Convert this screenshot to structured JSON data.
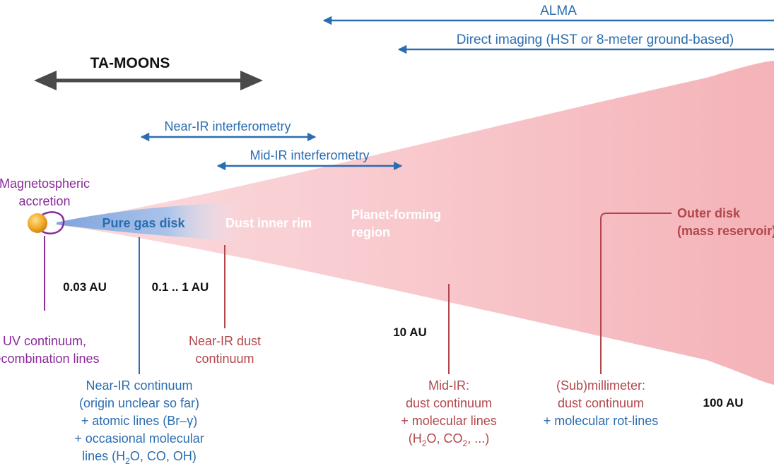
{
  "ranges": {
    "alma": "ALMA",
    "direct_imaging": "Direct imaging (HST or 8-meter ground-based)",
    "ta_moons": "TA-MOONS",
    "near_ir_interferometry": "Near-IR interferometry",
    "mid_ir_interferometry": "Mid-IR interferometry"
  },
  "regions": {
    "accretion_line1": "Magnetospheric",
    "accretion_line2": "accretion",
    "pure_gas_disk": "Pure gas disk",
    "dust_inner_rim": "Dust inner rim",
    "planet_forming_line1": "Planet-forming",
    "planet_forming_line2": "region",
    "outer_disk_line1": "Outer disk",
    "outer_disk_line2": "(mass reservoir)"
  },
  "distances": {
    "d1": "0.03 AU",
    "d2": "0.1 .. 1 AU",
    "d3": "10 AU",
    "d4": "100 AU"
  },
  "tracers": {
    "uv_line1": "UV continuum,",
    "uv_line2": "recombination lines",
    "nir_dust_line1": "Near-IR dust",
    "nir_dust_line2": "continuum",
    "nir_cont_line1": "Near-IR continuum",
    "nir_cont_line2": "(origin unclear so far)",
    "nir_cont_line3": "+ atomic lines (Br–γ)",
    "nir_cont_line4": "+ occasional molecular",
    "nir_cont_line5_a": "lines (H",
    "nir_cont_line5_sub": "2",
    "nir_cont_line5_b": "O, CO, OH)",
    "mid_ir_line1": "Mid-IR:",
    "mid_ir_line2": "dust continuum",
    "mid_ir_line3": "+ molecular lines",
    "mid_ir_line4_a": "(H",
    "mid_ir_line4_sub1": "2",
    "mid_ir_line4_b": "O, CO",
    "mid_ir_line4_sub2": "2",
    "mid_ir_line4_c": ", ...)",
    "submm_line1": "(Sub)millimeter:",
    "submm_line2": "dust continuum",
    "submm_line3": "+ molecular rot-lines"
  },
  "colors": {
    "blue": "#2a6db0",
    "red": "#b2474b",
    "purple": "#8a2a9b",
    "gray_arrow": "#4a4a4a",
    "disk_pink": "#f6b8bc",
    "gas_blue": "#8fb2e3",
    "star_orange": "#f0a21e"
  }
}
